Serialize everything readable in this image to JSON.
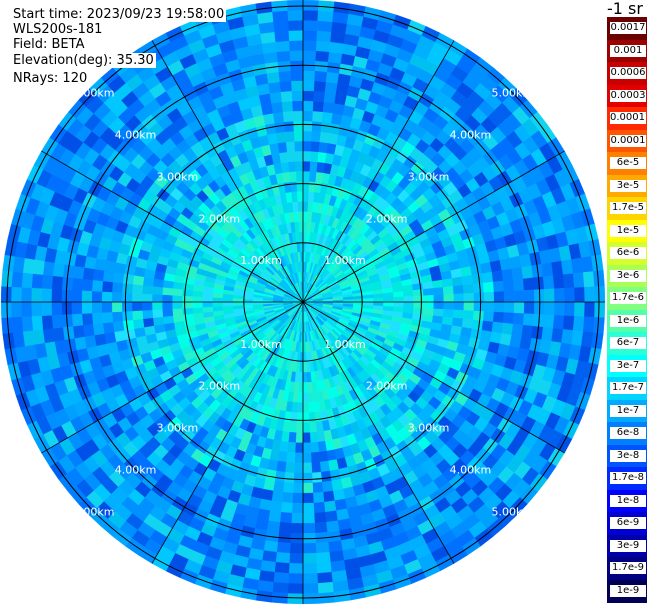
{
  "header": {
    "start_time": "Start time: 2023/09/23 19:58:00",
    "instrument": "WLS200s-181",
    "field": "Field: BETA",
    "elevation": "Elevation(deg): 35.30",
    "nrays": "NRays: 120",
    "unit": "-1 sr"
  },
  "chart_data": {
    "type": "heatmap",
    "subtype": "polar-ppi",
    "rays": 120,
    "range_rings_km": [
      1,
      2,
      3,
      4,
      5
    ],
    "ring_labels": [
      "1.00km",
      "2.00km",
      "3.00km",
      "4.00km",
      "5.00km"
    ],
    "spokes_deg": [
      0,
      30,
      60,
      90,
      120,
      150,
      180,
      210,
      240,
      270,
      300,
      330
    ],
    "max_range_km": 5.1,
    "field": "BETA",
    "colorbar": [
      {
        "label": "0.0017",
        "color": "#6b0000"
      },
      {
        "label": "0.001",
        "color": "#9c0000"
      },
      {
        "label": "0.0006",
        "color": "#c80000"
      },
      {
        "label": "0.0003",
        "color": "#e40000"
      },
      {
        "label": "0.00017",
        "color": "#ff2a00"
      },
      {
        "label": "0.0001",
        "color": "#ff5500"
      },
      {
        "label": "6e-5",
        "color": "#ff8000"
      },
      {
        "label": "3e-5",
        "color": "#ffaa00"
      },
      {
        "label": "1.7e-5",
        "color": "#ffd500"
      },
      {
        "label": "1e-5",
        "color": "#ffff00"
      },
      {
        "label": "6e-6",
        "color": "#d4ff2a"
      },
      {
        "label": "3e-6",
        "color": "#aaff55"
      },
      {
        "label": "1.7e-6",
        "color": "#80ff80"
      },
      {
        "label": "1e-6",
        "color": "#55ffaa"
      },
      {
        "label": "6e-7",
        "color": "#2affd5"
      },
      {
        "label": "3e-7",
        "color": "#00ffff"
      },
      {
        "label": "1.7e-7",
        "color": "#00d4ff"
      },
      {
        "label": "1e-7",
        "color": "#00aaff"
      },
      {
        "label": "6e-8",
        "color": "#0080ff"
      },
      {
        "label": "3e-8",
        "color": "#0055ff"
      },
      {
        "label": "1.7e-8",
        "color": "#002aff"
      },
      {
        "label": "1e-8",
        "color": "#0000ff"
      },
      {
        "label": "6e-9",
        "color": "#0000d4"
      },
      {
        "label": "3e-9",
        "color": "#0000aa"
      },
      {
        "label": "1.7e-9",
        "color": "#000080"
      },
      {
        "label": "1e-9",
        "color": "#000055"
      }
    ]
  }
}
